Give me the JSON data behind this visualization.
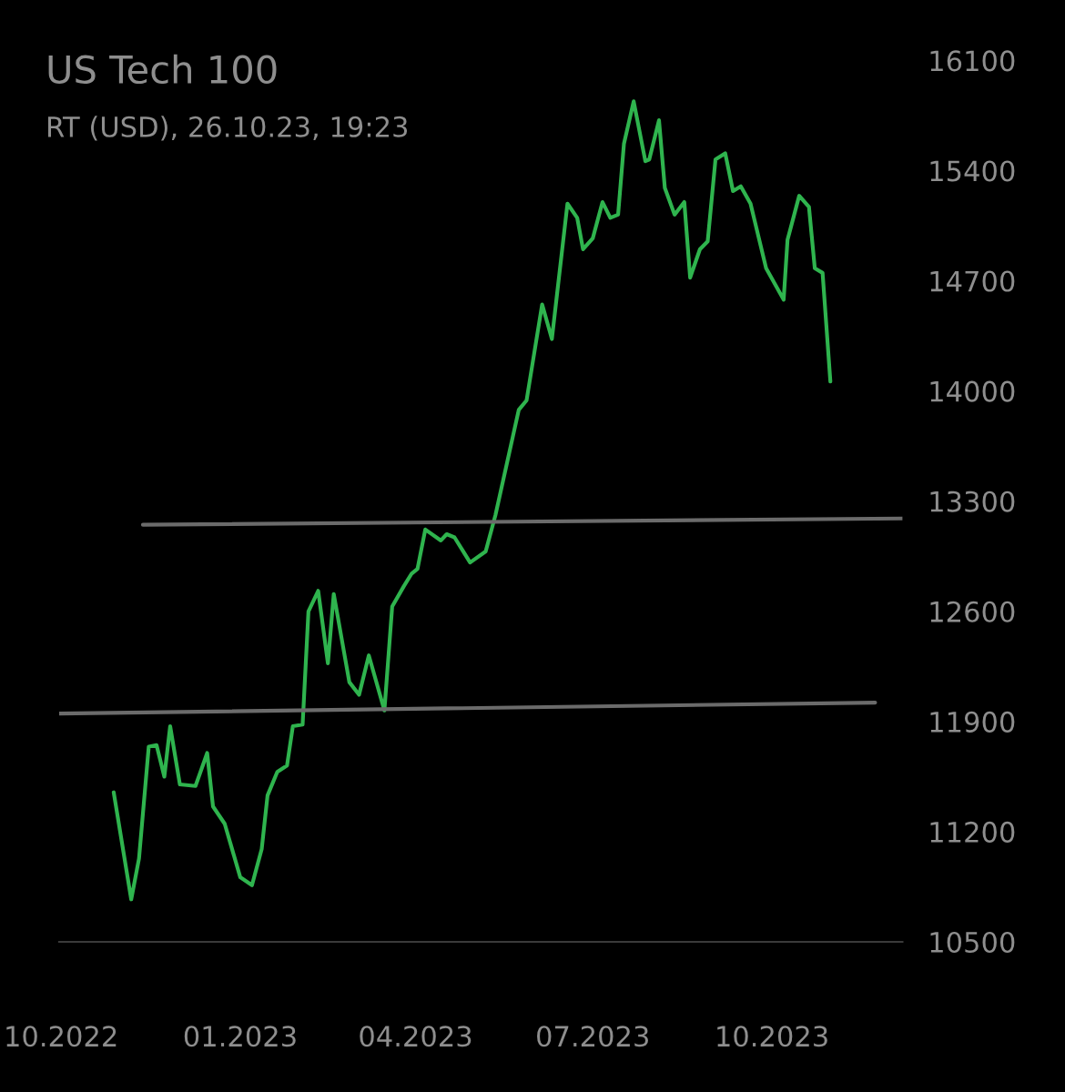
{
  "chart_data": {
    "type": "line",
    "title": "US Tech 100",
    "subtitle": "RT (USD), 26.10.23, 19:23",
    "x": [
      "2022-10-28",
      "2022-11-06",
      "2022-11-10",
      "2022-11-15",
      "2022-11-19",
      "2022-11-23",
      "2022-11-26",
      "2022-12-01",
      "2022-12-09",
      "2022-12-15",
      "2022-12-18",
      "2022-12-24",
      "2023-01-01",
      "2023-01-07",
      "2023-01-12",
      "2023-01-15",
      "2023-01-20",
      "2023-01-25",
      "2023-01-28",
      "2023-02-02",
      "2023-02-05",
      "2023-02-10",
      "2023-02-15",
      "2023-02-18",
      "2023-02-26",
      "2023-03-03",
      "2023-03-08",
      "2023-03-16",
      "2023-03-20",
      "2023-03-26",
      "2023-03-30",
      "2023-04-02",
      "2023-04-06",
      "2023-04-14",
      "2023-04-17",
      "2023-04-21",
      "2023-04-29",
      "2023-05-07",
      "2023-05-12",
      "2023-05-24",
      "2023-05-28",
      "2023-06-05",
      "2023-06-10",
      "2023-06-18",
      "2023-06-23",
      "2023-06-26",
      "2023-07-01",
      "2023-07-06",
      "2023-07-10",
      "2023-07-14",
      "2023-07-17",
      "2023-07-22",
      "2023-07-28",
      "2023-07-30",
      "2023-08-04",
      "2023-08-07",
      "2023-08-12",
      "2023-08-17",
      "2023-08-20",
      "2023-08-25",
      "2023-08-29",
      "2023-09-02",
      "2023-09-07",
      "2023-09-11",
      "2023-09-15",
      "2023-09-20",
      "2023-09-28",
      "2023-10-07",
      "2023-10-09",
      "2023-10-15",
      "2023-10-20",
      "2023-10-23",
      "2023-10-27",
      "2023-10-31"
    ],
    "series": [
      {
        "color": "#2fb44e",
        "values": [
          11450,
          10770,
          11030,
          11740,
          11750,
          11550,
          11870,
          11500,
          11490,
          11700,
          11360,
          11250,
          10910,
          10860,
          11090,
          11430,
          11580,
          11620,
          11870,
          11880,
          12600,
          12730,
          12270,
          12710,
          12150,
          12070,
          12320,
          11970,
          12630,
          12760,
          12840,
          12870,
          13120,
          13050,
          13090,
          13070,
          12910,
          12980,
          13210,
          13880,
          13940,
          14550,
          14330,
          15190,
          15100,
          14900,
          14970,
          15200,
          15100,
          15120,
          15570,
          15840,
          15460,
          15470,
          15720,
          15290,
          15120,
          15200,
          14720,
          14900,
          14950,
          15470,
          15510,
          15270,
          15300,
          15190,
          14780,
          14580,
          14960,
          15240,
          15170,
          14780,
          14750,
          14060
        ]
      },
      {
        "x": [
          "2022-09-30",
          "2023-11-23"
        ],
        "values": [
          11950,
          12020
        ],
        "color": "#6b6b6b"
      },
      {
        "x": [
          "2022-11-12",
          "2023-12-07"
        ],
        "values": [
          13150,
          13190
        ],
        "color": "#6b6b6b"
      }
    ],
    "xlim": [
      "2022-09-30",
      "2023-12-07"
    ],
    "xticks": [
      {
        "value": "2022-10-01",
        "label": "10.2022"
      },
      {
        "value": "2023-01-01",
        "label": "01.2023"
      },
      {
        "value": "2023-04-01",
        "label": "04.2023"
      },
      {
        "value": "2023-07-01",
        "label": "07.2023"
      },
      {
        "value": "2023-10-01",
        "label": "10.2023"
      }
    ],
    "ylim": [
      10500,
      16100
    ],
    "yticks": [
      10500,
      11200,
      11900,
      12600,
      13300,
      14000,
      14700,
      15400,
      16100
    ]
  }
}
